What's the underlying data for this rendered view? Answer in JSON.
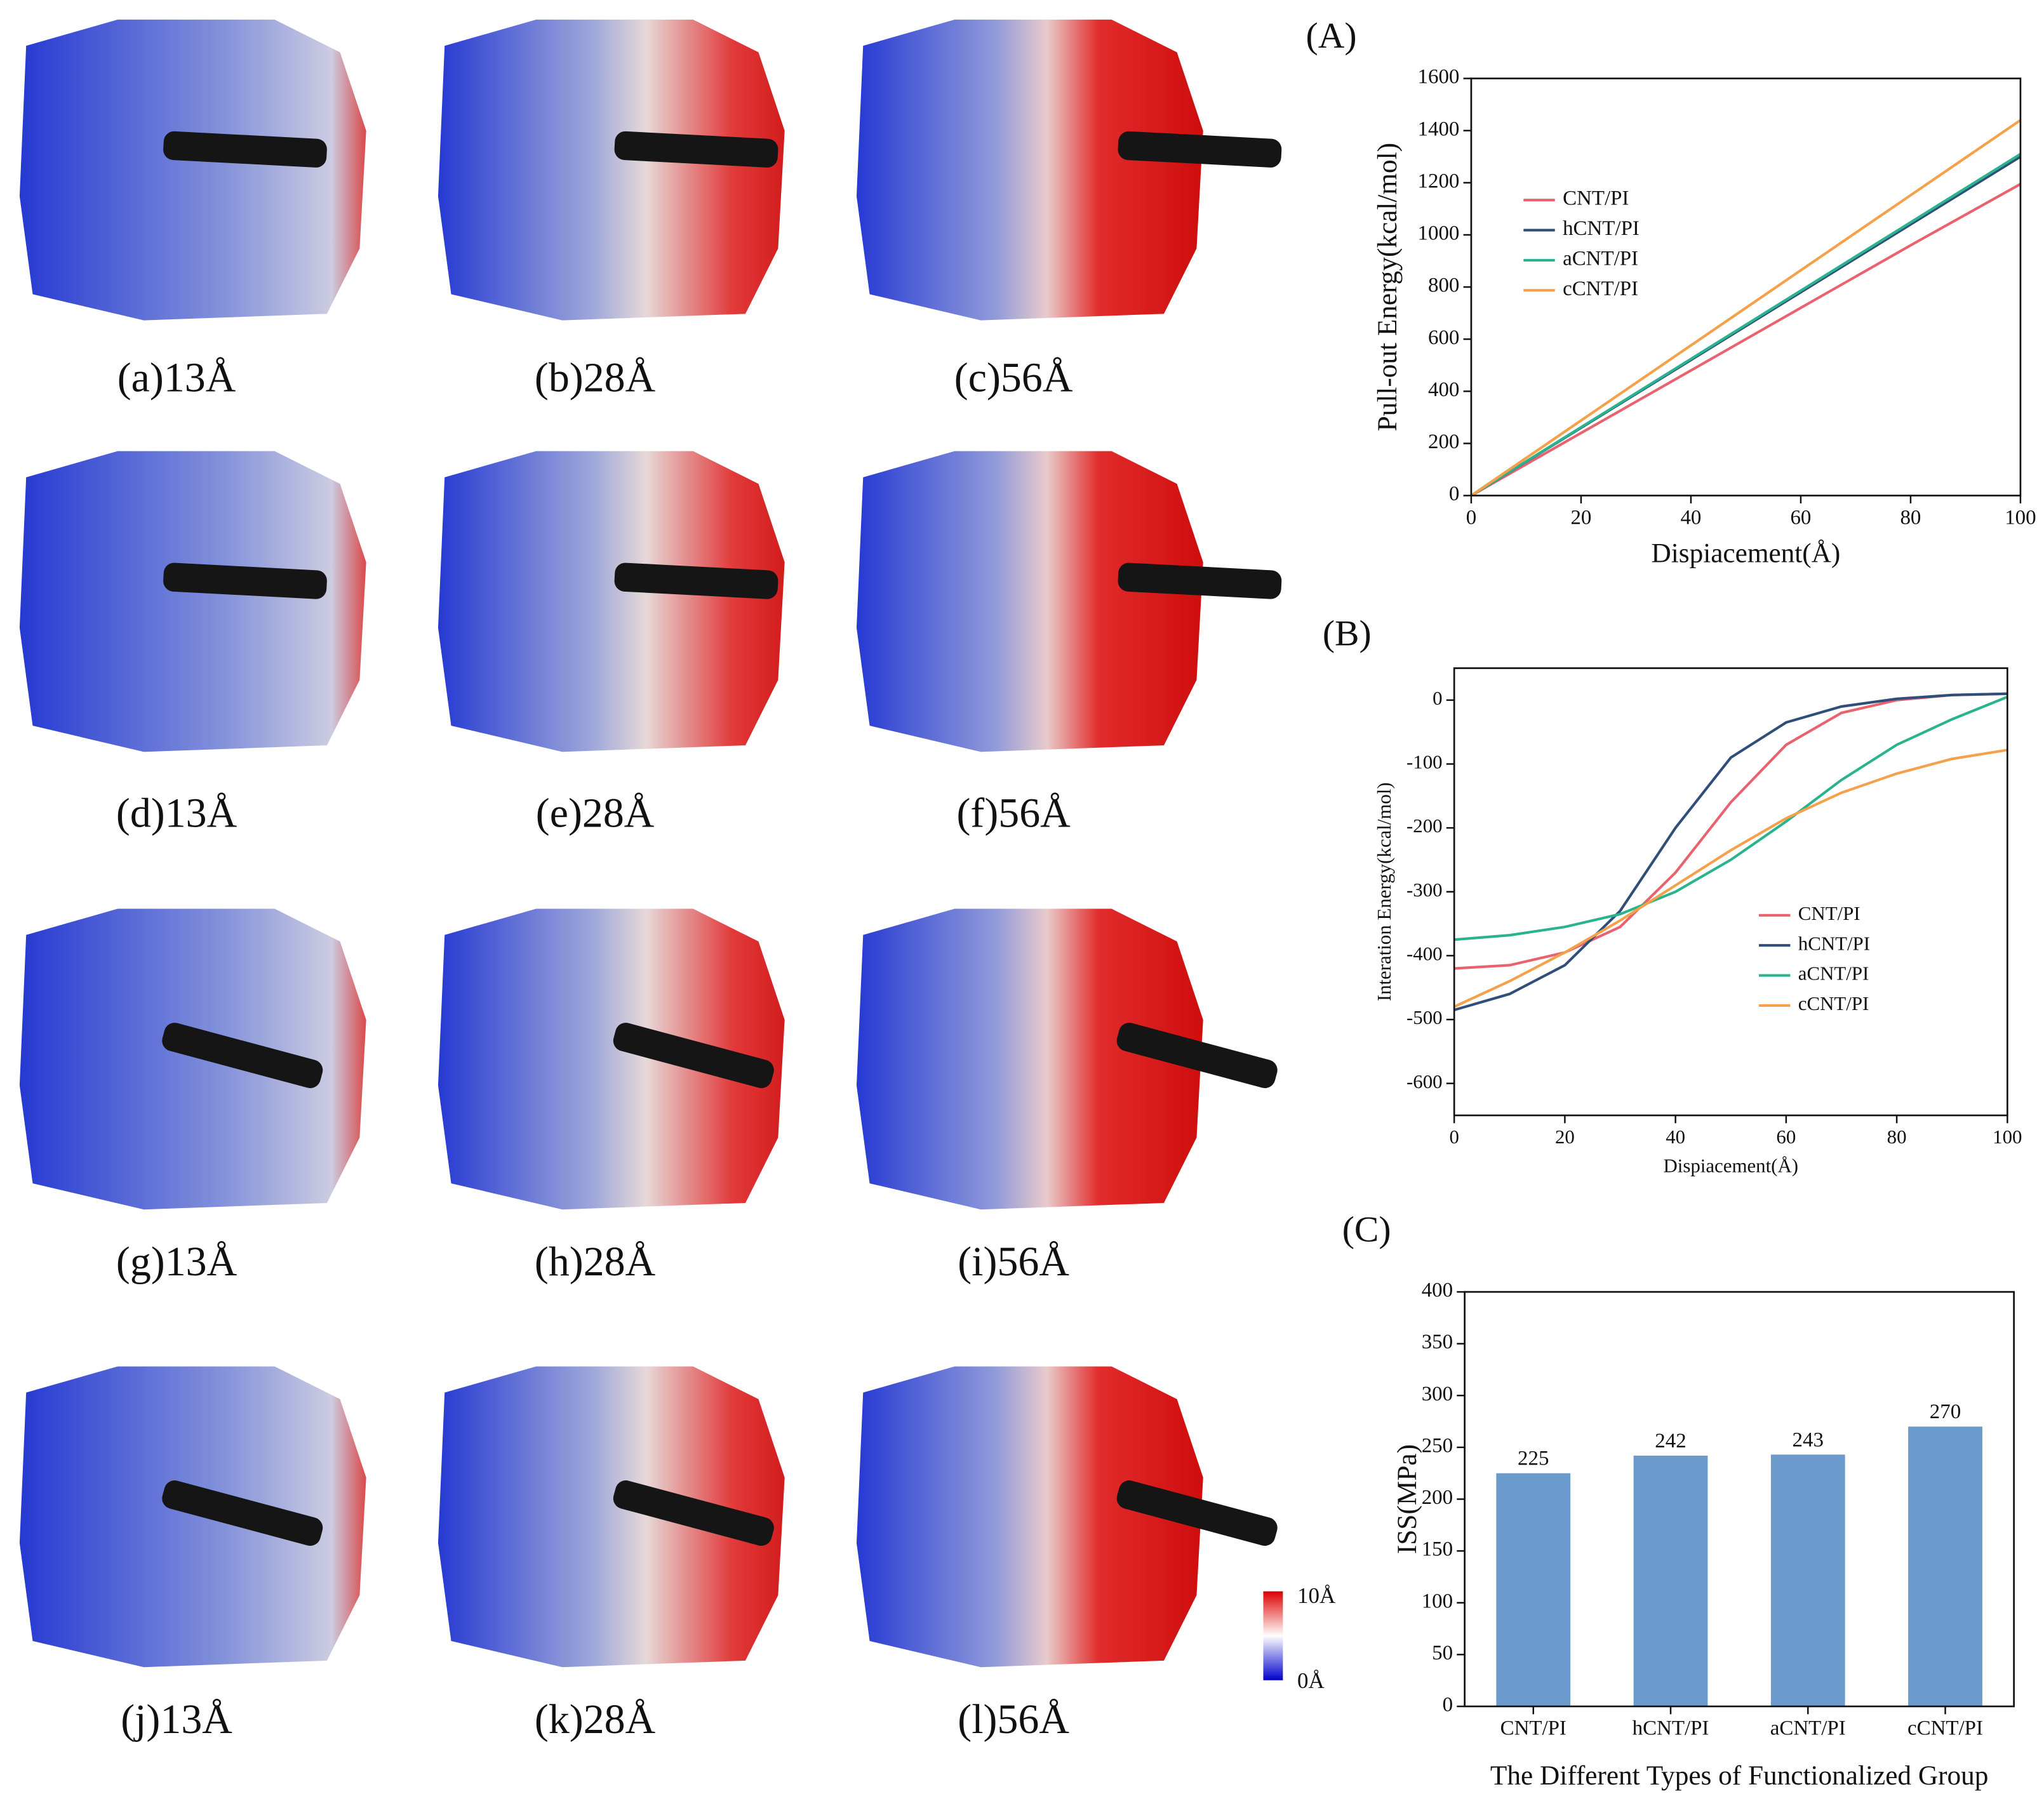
{
  "panel_labels": [
    "(a)13Å",
    "(b)28Å",
    "(c)56Å",
    "(d)13Å",
    "(e)28Å",
    "(f)56Å",
    "(g)13Å",
    "(h)28Å",
    "(i)56Å",
    "(j)13Å",
    "(k)28Å",
    "(l)56Å"
  ],
  "colorbar": {
    "max_label": "10Å",
    "min_label": "0Å"
  },
  "chart_data": [
    {
      "type": "line",
      "panel_label": "(A)",
      "x_label": "Dispiacement(Å)",
      "y_label": "Pull-out Energy(kcal/mol)",
      "x": [
        0,
        20,
        40,
        60,
        80,
        100
      ],
      "xlim": [
        0,
        100
      ],
      "xticks": [
        0,
        20,
        40,
        60,
        80,
        100
      ],
      "ylim": [
        0,
        1600
      ],
      "yticks": [
        0,
        200,
        400,
        600,
        800,
        1000,
        1200,
        1400,
        1600
      ],
      "legend": "upper left",
      "series": [
        {
          "name": "CNT/PI",
          "color": "#e8636e",
          "values": [
            0,
            240,
            480,
            720,
            960,
            1195
          ]
        },
        {
          "name": "hCNT/PI",
          "color": "#2f4f7a",
          "values": [
            0,
            260,
            520,
            780,
            1040,
            1300
          ]
        },
        {
          "name": "aCNT/PI",
          "color": "#2ab38e",
          "values": [
            0,
            262,
            524,
            786,
            1048,
            1310
          ]
        },
        {
          "name": "cCNT/PI",
          "color": "#f5a04a",
          "values": [
            0,
            288,
            576,
            864,
            1152,
            1440
          ]
        }
      ]
    },
    {
      "type": "line",
      "panel_label": "(B)",
      "x_label": "Dispiacement(Å)",
      "y_label": "Interation Energy(kcal/mol)",
      "x": [
        0,
        10,
        20,
        30,
        40,
        50,
        60,
        70,
        80,
        90,
        100
      ],
      "xlim": [
        0,
        100
      ],
      "xticks": [
        0,
        20,
        40,
        60,
        80,
        100
      ],
      "ylim": [
        -650,
        50
      ],
      "yticks": [
        -600,
        -500,
        -400,
        -300,
        -200,
        -100,
        0
      ],
      "legend": "lower right",
      "series": [
        {
          "name": "CNT/PI",
          "color": "#e8636e",
          "values": [
            -420,
            -415,
            -395,
            -355,
            -270,
            -160,
            -70,
            -20,
            0,
            8,
            10
          ]
        },
        {
          "name": "hCNT/PI",
          "color": "#2f4f7a",
          "values": [
            -485,
            -460,
            -415,
            -330,
            -200,
            -90,
            -35,
            -10,
            2,
            8,
            10
          ]
        },
        {
          "name": "aCNT/PI",
          "color": "#2ab38e",
          "values": [
            -375,
            -368,
            -355,
            -335,
            -300,
            -250,
            -190,
            -125,
            -70,
            -30,
            5
          ]
        },
        {
          "name": "cCNT/PI",
          "color": "#f5a04a",
          "values": [
            -480,
            -440,
            -395,
            -345,
            -290,
            -235,
            -185,
            -145,
            -115,
            -92,
            -78
          ]
        }
      ]
    },
    {
      "type": "bar",
      "panel_label": "(C)",
      "x_label": "The Different Types of Functionalized Group",
      "y_label": "ISS(MPa)",
      "categories": [
        "CNT/PI",
        "hCNT/PI",
        "aCNT/PI",
        "cCNT/PI"
      ],
      "values": [
        225,
        242,
        243,
        270
      ],
      "color": "#6a9bcc",
      "ylim": [
        0,
        400
      ],
      "yticks": [
        0,
        50,
        100,
        150,
        200,
        250,
        300,
        350,
        400
      ]
    }
  ]
}
